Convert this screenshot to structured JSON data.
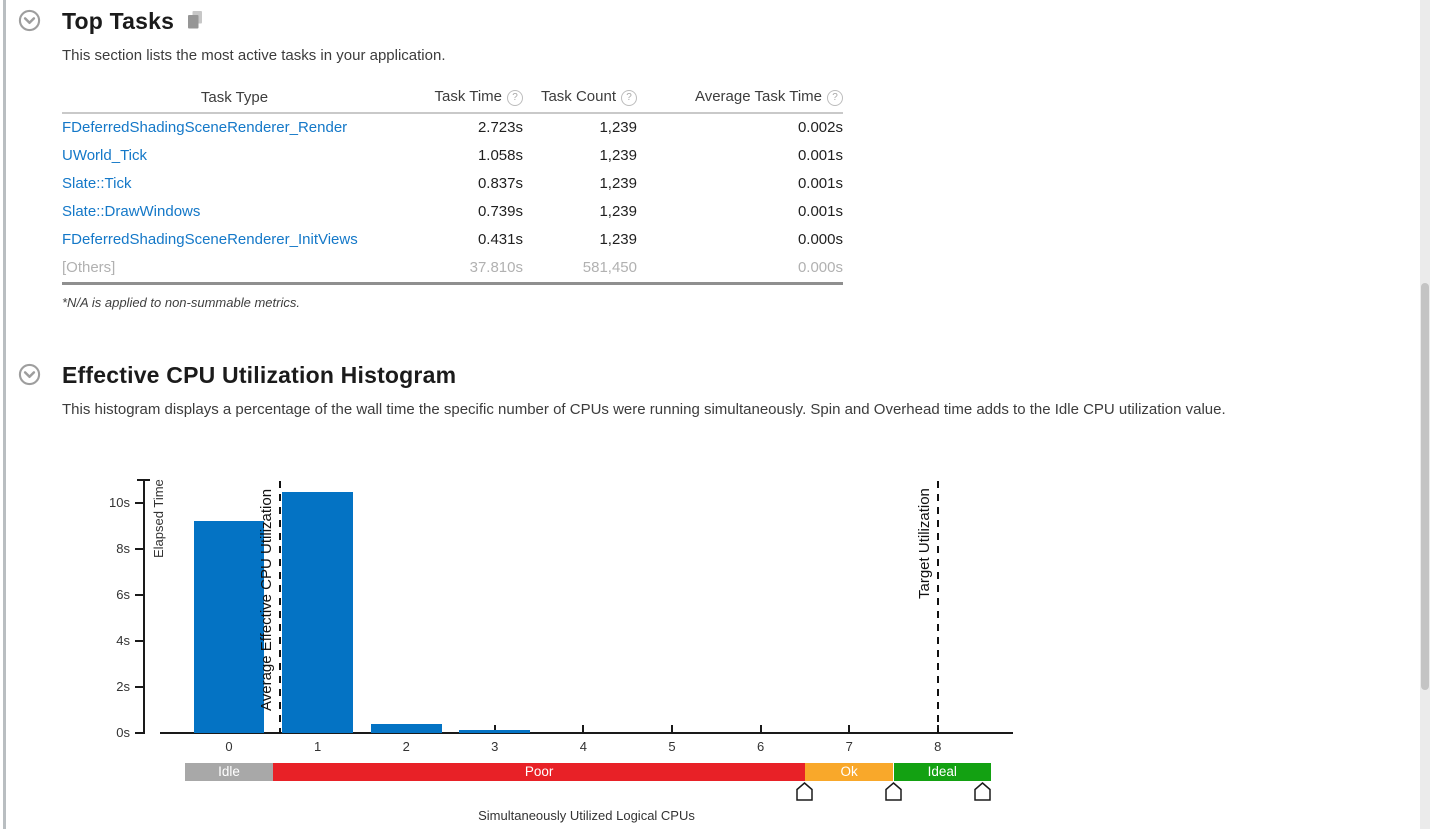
{
  "colors": {
    "link": "#1478c8",
    "section_left_border": "#b9bec1",
    "others_row_text": "#b1b1b1"
  },
  "icons": {
    "help": "?"
  },
  "sections": {
    "top_tasks": {
      "title": "Top Tasks",
      "description": "This section lists the most active tasks in your application.",
      "table": {
        "columns": [
          "Task Type",
          "Task Time",
          "Task Count",
          "Average Task Time"
        ],
        "rows": [
          {
            "task": "FDeferredShadingSceneRenderer_Render",
            "time": "2.723s",
            "count": "1,239",
            "avg": "0.002s",
            "link": true
          },
          {
            "task": "UWorld_Tick",
            "time": "1.058s",
            "count": "1,239",
            "avg": "0.001s",
            "link": true
          },
          {
            "task": "Slate::Tick",
            "time": "0.837s",
            "count": "1,239",
            "avg": "0.001s",
            "link": true
          },
          {
            "task": "Slate::DrawWindows",
            "time": "0.739s",
            "count": "1,239",
            "avg": "0.001s",
            "link": true
          },
          {
            "task": "FDeferredShadingSceneRenderer_InitViews",
            "time": "0.431s",
            "count": "1,239",
            "avg": "0.000s",
            "link": true
          },
          {
            "task": "[Others]",
            "time": "37.810s",
            "count": "581,450",
            "avg": "0.000s",
            "link": false
          }
        ],
        "footnote": "*N/A is applied to non-summable metrics."
      }
    },
    "histogram": {
      "title": "Effective CPU Utilization Histogram",
      "description": "This histogram displays a percentage of the wall time the specific number of CPUs were running simultaneously. Spin and Overhead time adds to the Idle CPU utilization value."
    }
  },
  "chart_data": {
    "type": "bar",
    "title": "Effective CPU Utilization Histogram",
    "xlabel": "Simultaneously Utilized Logical CPUs",
    "ylabel": "Elapsed Time",
    "x": [
      0,
      1,
      2,
      3,
      4,
      5,
      6,
      7,
      8
    ],
    "values": [
      9.2,
      10.5,
      0.4,
      0.15,
      0,
      0,
      0,
      0,
      0
    ],
    "values_unit": "seconds",
    "y_ticks": [
      "0s",
      "2s",
      "4s",
      "6s",
      "8s",
      "10s"
    ],
    "ylim": [
      0,
      11
    ],
    "grid": false,
    "bar_color": "#0473c4",
    "annotations": [
      {
        "label": "Average Effective CPU Utilization",
        "x": 0.58,
        "style": "dashed"
      },
      {
        "label": "Target Utilization",
        "x": 8,
        "style": "dashed"
      }
    ],
    "utilization_bands": [
      {
        "label": "Idle",
        "from": -0.5,
        "to": 0.5,
        "color": "#a8a8a8"
      },
      {
        "label": "Poor",
        "from": 0.5,
        "to": 6.5,
        "color": "#e82127"
      },
      {
        "label": "Ok",
        "from": 6.5,
        "to": 7.5,
        "color": "#f9a82a"
      },
      {
        "label": "Ideal",
        "from": 7.5,
        "to": 8.6,
        "color": "#13a112"
      }
    ],
    "sliders_x": [
      6.5,
      7.5,
      8.5
    ]
  }
}
